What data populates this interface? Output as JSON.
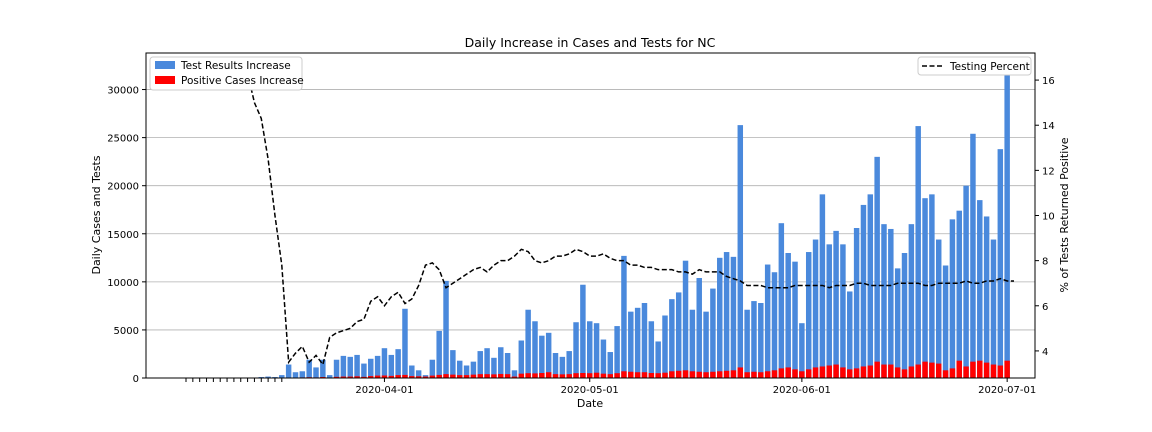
{
  "chart_data": {
    "type": "bar",
    "title": "Daily Increase in Cases and Tests for NC",
    "xlabel": "Date",
    "ylabel_left": "Daily Cases and Tests",
    "ylabel_right": "% of Tests Returned Positive",
    "start_date": "2020-03-03",
    "x_tick_labels": [
      "2020-04-01",
      "2020-05-01",
      "2020-06-01",
      "2020-07-01"
    ],
    "ylim_left": [
      0,
      33800
    ],
    "yticks_left": [
      "0",
      "5000",
      "10000",
      "15000",
      "20000",
      "25000",
      "30000"
    ],
    "ylim_right": [
      2.8,
      17.2
    ],
    "yticks_right": [
      "4",
      "6",
      "8",
      "10",
      "12",
      "14",
      "16"
    ],
    "grid": "horizontal",
    "colors": {
      "tests": "#4a89dc",
      "positive": "#ff0000",
      "line": "#000000"
    },
    "legend_left": {
      "placement": "top-left",
      "items": [
        "Test Results Increase",
        "Positive Cases Increase"
      ]
    },
    "legend_right": {
      "placement": "top-right",
      "items": [
        "Testing Percent"
      ]
    },
    "series": [
      {
        "name": "Test Results Increase",
        "values": [
          0,
          0,
          0,
          0,
          0,
          0,
          0,
          0,
          0,
          50,
          0,
          100,
          150,
          100,
          300,
          1400,
          600,
          700,
          1900,
          1100,
          1900,
          300,
          1900,
          2300,
          2200,
          2400,
          1500,
          2000,
          2300,
          3100,
          2400,
          3000,
          7200,
          1300,
          800,
          300,
          1900,
          4900,
          10100,
          2900,
          1800,
          1300,
          1700,
          2800,
          3100,
          2100,
          3200,
          2600,
          800,
          3900,
          7100,
          5900,
          4400,
          4700,
          2600,
          2200,
          2800,
          5800,
          9700,
          5900,
          5700,
          4000,
          2700,
          5400,
          12700,
          6900,
          7300,
          7800,
          5900,
          3800,
          6500,
          8200,
          8900,
          12200,
          7100,
          10400,
          6900,
          9300,
          12500,
          13100,
          12600,
          26300,
          7100,
          8000,
          7800,
          11800,
          11000,
          16100,
          13000,
          12100,
          5700,
          13100,
          14400,
          19100,
          13900,
          15300,
          13900,
          9000,
          15600,
          18000,
          19100,
          23000,
          16000,
          15500,
          11400,
          13000,
          16000,
          26200,
          18700,
          19100,
          14400,
          11700,
          16500,
          17400,
          20000,
          25400,
          18500,
          16800,
          14400,
          23800,
          31500
        ]
      },
      {
        "name": "Positive Cases Increase",
        "values": [
          0,
          0,
          0,
          0,
          0,
          0,
          0,
          0,
          0,
          0,
          0,
          0,
          0,
          0,
          0,
          50,
          40,
          60,
          80,
          60,
          100,
          40,
          120,
          150,
          150,
          180,
          120,
          200,
          250,
          260,
          220,
          300,
          320,
          200,
          180,
          150,
          250,
          320,
          400,
          350,
          300,
          300,
          350,
          400,
          400,
          380,
          420,
          400,
          150,
          450,
          500,
          480,
          520,
          600,
          400,
          380,
          400,
          500,
          520,
          500,
          550,
          450,
          400,
          500,
          700,
          650,
          600,
          600,
          520,
          500,
          550,
          700,
          750,
          800,
          700,
          650,
          600,
          650,
          700,
          750,
          800,
          1100,
          600,
          650,
          600,
          700,
          800,
          1000,
          1100,
          900,
          700,
          900,
          1100,
          1200,
          1300,
          1400,
          1100,
          900,
          1000,
          1200,
          1300,
          1700,
          1400,
          1400,
          1100,
          900,
          1200,
          1400,
          1700,
          1600,
          1500,
          800,
          1000,
          1800,
          1200,
          1700,
          1800,
          1600,
          1400,
          1300,
          1800
        ]
      },
      {
        "name": "Testing Percent",
        "type": "line",
        "values": [
          null,
          null,
          null,
          null,
          null,
          null,
          null,
          null,
          null,
          16.3,
          15.0,
          14.3,
          12.5,
          10.0,
          7.8,
          3.5,
          3.9,
          4.2,
          3.5,
          3.8,
          3.4,
          4.6,
          4.8,
          4.9,
          5.0,
          5.3,
          5.4,
          6.2,
          6.4,
          6.0,
          6.4,
          6.6,
          6.1,
          6.3,
          6.9,
          7.8,
          7.9,
          7.6,
          6.8,
          7.0,
          7.2,
          7.4,
          7.6,
          7.7,
          7.5,
          7.8,
          8.0,
          8.0,
          8.2,
          8.5,
          8.4,
          8.0,
          7.9,
          8.0,
          8.2,
          8.2,
          8.3,
          8.5,
          8.4,
          8.2,
          8.2,
          8.3,
          8.1,
          8.0,
          8.0,
          7.8,
          7.8,
          7.7,
          7.7,
          7.6,
          7.6,
          7.6,
          7.5,
          7.5,
          7.4,
          7.6,
          7.5,
          7.5,
          7.5,
          7.3,
          7.2,
          7.1,
          6.9,
          6.9,
          6.9,
          6.8,
          6.8,
          6.8,
          6.8,
          6.9,
          6.9,
          6.9,
          6.9,
          6.9,
          6.8,
          6.9,
          6.9,
          6.9,
          7.0,
          7.0,
          6.9,
          6.9,
          6.9,
          6.9,
          7.0,
          7.0,
          7.0,
          7.0,
          6.9,
          6.9,
          7.0,
          7.0,
          7.0,
          7.0,
          7.1,
          7.0,
          7.0,
          7.1,
          7.1,
          7.2,
          7.1,
          7.1
        ]
      }
    ]
  }
}
